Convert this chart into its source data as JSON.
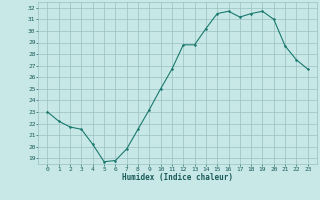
{
  "x": [
    0,
    1,
    2,
    3,
    4,
    5,
    6,
    7,
    8,
    9,
    10,
    11,
    12,
    13,
    14,
    15,
    16,
    17,
    18,
    19,
    20,
    21,
    22,
    23
  ],
  "y": [
    23.0,
    22.2,
    21.7,
    21.5,
    20.2,
    18.7,
    18.8,
    19.8,
    21.5,
    23.2,
    25.0,
    26.7,
    28.8,
    28.8,
    30.2,
    31.5,
    31.7,
    31.2,
    31.5,
    31.7,
    31.0,
    28.7,
    27.5,
    26.7
  ],
  "xlabel": "Humidex (Indice chaleur)",
  "ylim_min": 18.5,
  "ylim_max": 32.5,
  "yticks": [
    19,
    20,
    21,
    22,
    23,
    24,
    25,
    26,
    27,
    28,
    29,
    30,
    31,
    32
  ],
  "xticks": [
    0,
    1,
    2,
    3,
    4,
    5,
    6,
    7,
    8,
    9,
    10,
    11,
    12,
    13,
    14,
    15,
    16,
    17,
    18,
    19,
    20,
    21,
    22,
    23
  ],
  "line_color": "#1a7a6e",
  "marker_color": "#1a7a6e",
  "bg_color": "#c8e8e8",
  "grid_color": "#9bbfbf",
  "tick_label_color": "#1a5a5a",
  "axis_label_color": "#1a5a5a"
}
